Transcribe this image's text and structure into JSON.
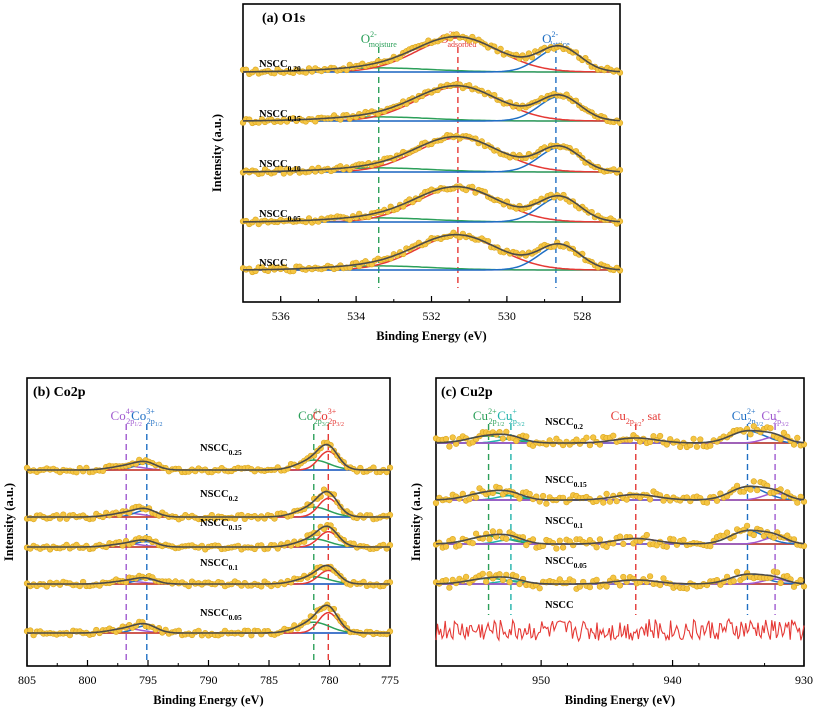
{
  "chart_data": [
    {
      "id": "o1s",
      "type": "line",
      "title": "(a) O1s",
      "xlabel": "Binding Energy (eV)",
      "ylabel": "Intensity (a.u.)",
      "xlim": [
        537,
        527
      ],
      "xticks": [
        536,
        534,
        532,
        530,
        528
      ],
      "reverse_x": true,
      "samples": [
        {
          "base": "NSCC",
          "sub": "0.20"
        },
        {
          "base": "NSCC",
          "sub": "0.15"
        },
        {
          "base": "NSCC",
          "sub": "0.10"
        },
        {
          "base": "NSCC",
          "sub": "0.05"
        },
        {
          "base": "NSCC",
          "sub": ""
        }
      ],
      "components": [
        {
          "name": "O2- moisture",
          "center": 533.4,
          "width": 1.4,
          "amp": 0.12,
          "color": "#2ca05a"
        },
        {
          "name": "O2- adsorbed",
          "center": 531.3,
          "width": 1.1,
          "amp": 1.0,
          "color": "#e53935"
        },
        {
          "name": "O2- lattice",
          "center": 528.6,
          "width": 0.55,
          "amp": 0.72,
          "color": "#1f6fc4"
        }
      ],
      "markers": [
        {
          "at": 533.4,
          "label": "O",
          "sup": "2-",
          "sub": "moisture",
          "color": "#2ca05a"
        },
        {
          "at": 531.3,
          "label": "O",
          "sup": "2-",
          "sub": "adsorbed",
          "color": "#e53935"
        },
        {
          "at": 528.7,
          "label": "O",
          "sup": "2-",
          "sub": "lattice",
          "color": "#1f6fc4"
        }
      ]
    },
    {
      "id": "co2p",
      "type": "line",
      "title": "(b) Co2p",
      "xlabel": "Binding Energy (eV)",
      "ylabel": "Intensity (a.u.)",
      "xlim": [
        805,
        775
      ],
      "xticks": [
        805,
        800,
        795,
        790,
        785,
        780,
        775
      ],
      "reverse_x": true,
      "samples": [
        {
          "base": "NSCC",
          "sub": "0.25"
        },
        {
          "base": "NSCC",
          "sub": "0.2"
        },
        {
          "base": "NSCC",
          "sub": "0.15"
        },
        {
          "base": "NSCC",
          "sub": "0.1"
        },
        {
          "base": "NSCC",
          "sub": "0.05"
        }
      ],
      "components": [
        {
          "name": "Co4+ 2p1/2",
          "center": 796.8,
          "width": 1.3,
          "amp": 0.18,
          "color": "#a05ad0"
        },
        {
          "name": "Co3+ 2p1/2",
          "center": 795.2,
          "width": 0.9,
          "amp": 0.3,
          "color": "#1f6fc4"
        },
        {
          "name": "Co4+ 2p3/2",
          "center": 781.3,
          "width": 1.3,
          "amp": 0.45,
          "color": "#2ca05a"
        },
        {
          "name": "Co3+ 2p3/2",
          "center": 780.1,
          "width": 0.8,
          "amp": 0.85,
          "color": "#e53935"
        }
      ],
      "markers": [
        {
          "at": 796.8,
          "label": "Co",
          "sup": "4+",
          "sub": "2p",
          "sub2": "1/2",
          "color": "#a05ad0"
        },
        {
          "at": 795.1,
          "label": "Co",
          "sup": "3+",
          "sub": "2p",
          "sub2": "1/2",
          "color": "#1f6fc4"
        },
        {
          "at": 781.3,
          "label": "Co",
          "sup": "4+",
          "sub": "2p",
          "sub2": "3/2",
          "color": "#2ca05a"
        },
        {
          "at": 780.1,
          "label": "Co",
          "sup": "3+",
          "sub": "2p",
          "sub2": "3/2",
          "color": "#e53935"
        }
      ]
    },
    {
      "id": "cu2p",
      "type": "line",
      "title": "(c) Cu2p",
      "xlabel": "Binding Energy (eV)",
      "ylabel": "Intensity (a.u.)",
      "xlim": [
        958,
        930
      ],
      "xticks": [
        950,
        940,
        930
      ],
      "reverse_x": true,
      "samples": [
        {
          "base": "NSCC",
          "sub": "0.2"
        },
        {
          "base": "NSCC",
          "sub": "0.15"
        },
        {
          "base": "NSCC",
          "sub": "0.1"
        },
        {
          "base": "NSCC",
          "sub": "0.05"
        },
        {
          "base": "NSCC",
          "sub": ""
        }
      ],
      "components": [
        {
          "name": "Cu2+ 2p1/2",
          "center": 954.0,
          "width": 1.5,
          "amp": 0.35,
          "color": "#2ca05a"
        },
        {
          "name": "Cu+ 2p3/2",
          "center": 952.3,
          "width": 1.0,
          "amp": 0.2,
          "color": "#20b2aa"
        },
        {
          "name": "Cu 2p3/2 sat",
          "center": 942.8,
          "width": 1.6,
          "amp": 0.25,
          "color": "#e53935"
        },
        {
          "name": "Cu2+ 2p3/2",
          "center": 934.3,
          "width": 1.3,
          "amp": 0.6,
          "color": "#1f6fc4"
        },
        {
          "name": "Cu+ 2p3/2 b",
          "center": 932.2,
          "width": 0.9,
          "amp": 0.3,
          "color": "#a05ad0"
        }
      ],
      "markers": [
        {
          "at": 954.0,
          "label": "Cu",
          "sup": "2+",
          "sub": "2p",
          "sub2": "1/2",
          "color": "#2ca05a"
        },
        {
          "at": 952.3,
          "label": "Cu",
          "sup": "+",
          "sub": "2p",
          "sub2": "3/2",
          "color": "#20b2aa"
        },
        {
          "at": 942.8,
          "label": "Cu",
          "sub": "2p",
          "sub2": "3/2",
          "tail": ", sat",
          "color": "#e53935"
        },
        {
          "at": 934.3,
          "label": "Cu",
          "sup": "2+",
          "sub": "2p",
          "sub2": "3/2",
          "color": "#1f6fc4"
        },
        {
          "at": 932.2,
          "label": "Cu",
          "sup": "+",
          "sub": "2p",
          "sub2": "3/2",
          "color": "#a05ad0"
        }
      ]
    }
  ]
}
